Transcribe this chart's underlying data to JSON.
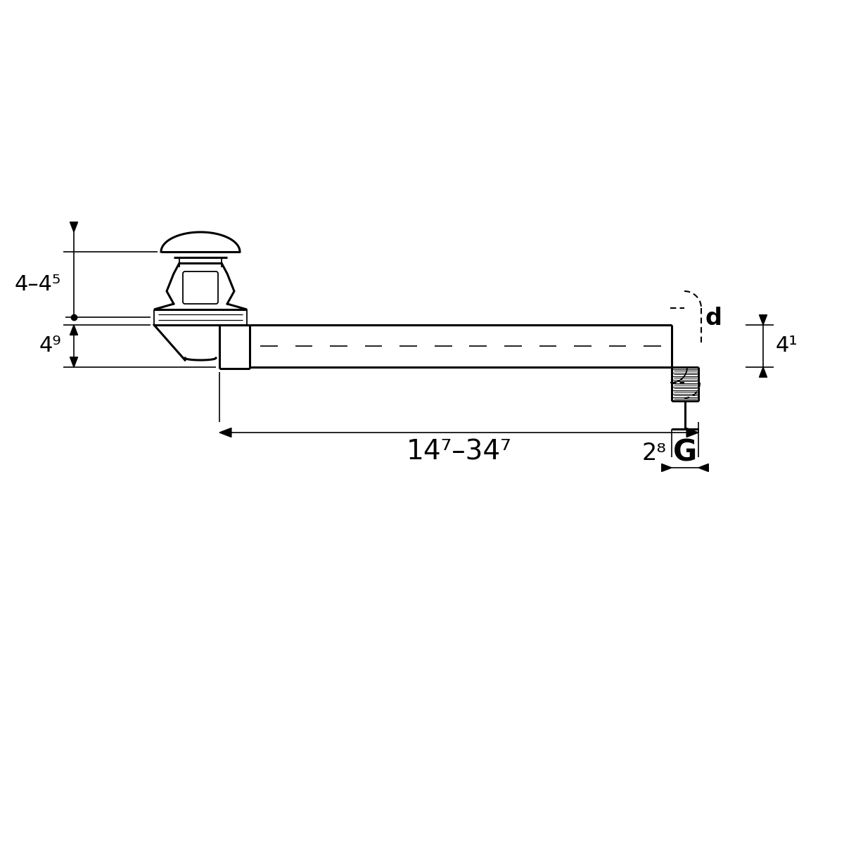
{
  "bg_color": "#ffffff",
  "line_color": "#000000",
  "fig_width": 12,
  "fig_height": 12,
  "dim_label_45": "4–4⁵",
  "dim_label_49": "4⁹",
  "dim_label_41": "4¹",
  "dim_label_28": "2⁸",
  "dim_label_range": "14⁷–34⁷",
  "dim_label_d": "d",
  "dim_label_G": "G"
}
